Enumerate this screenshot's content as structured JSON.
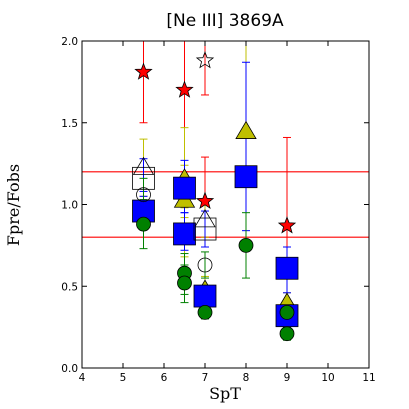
{
  "chart_data": {
    "type": "scatter",
    "title": "[Ne III] 3869A",
    "xlabel": "SpT",
    "ylabel": "Fpre/Fobs",
    "xlim": [
      4,
      11
    ],
    "ylim": [
      0.0,
      2.0
    ],
    "xticks": [
      4,
      5,
      6,
      7,
      8,
      9,
      10,
      11
    ],
    "yticks": [
      0.0,
      0.5,
      1.0,
      1.5,
      2.0
    ],
    "xtick_labels": [
      "4",
      "5",
      "6",
      "7",
      "8",
      "9",
      "10",
      "11"
    ],
    "ytick_labels": [
      "0.0",
      "0.5",
      "1.0",
      "1.5",
      "2.0"
    ],
    "grid": false,
    "reference_lines": [
      1.2,
      0.8
    ],
    "colors": {
      "reference_line": "#ff0000",
      "red_star": "#ff0000",
      "yellow_triangle": "#bfbf00",
      "blue_square": "#0000ff",
      "green_circle": "#008000"
    },
    "series": [
      {
        "marker": "star",
        "filled": true,
        "color": "#ff0000",
        "err_color": "#ff0000",
        "points": [
          {
            "x": 5.5,
            "y": 1.81,
            "lo": 1.5,
            "hi": 2.0
          },
          {
            "x": 6.5,
            "y": 1.7,
            "lo": 1.2,
            "hi": 2.0
          },
          {
            "x": 7.0,
            "y": 1.02,
            "lo": 0.8,
            "hi": 1.29
          },
          {
            "x": 9.0,
            "y": 0.87,
            "lo": 0.58,
            "hi": 1.41
          }
        ]
      },
      {
        "marker": "star",
        "filled": false,
        "color": "#000000",
        "err_color": "#ff0000",
        "points": [
          {
            "x": 7.0,
            "y": 1.88,
            "lo": 1.67,
            "hi": 2.0
          }
        ]
      },
      {
        "marker": "triangle",
        "filled": true,
        "color": "#bfbf00",
        "err_color": "#bfbf00",
        "points": [
          {
            "x": 6.5,
            "y": 1.15,
            "lo": 0.92,
            "hi": 1.47
          },
          {
            "x": 6.5,
            "y": 1.02,
            "lo": 0.85,
            "hi": 1.24
          },
          {
            "x": 6.5,
            "y": 0.8,
            "lo": 0.68,
            "hi": 0.98
          },
          {
            "x": 7.0,
            "y": 0.47,
            "lo": 0.38,
            "hi": 0.56
          },
          {
            "x": 8.0,
            "y": 1.44,
            "lo": 1.15,
            "hi": 2.0
          },
          {
            "x": 9.0,
            "y": 0.39,
            "lo": 0.34,
            "hi": 0.46
          }
        ]
      },
      {
        "marker": "triangle",
        "filled": false,
        "color": "#000000",
        "err_color": "#bfbf00",
        "points": [
          {
            "x": 5.5,
            "y": 1.22,
            "lo": 1.05,
            "hi": 1.4
          },
          {
            "x": 7.0,
            "y": 0.9,
            "lo": 0.8,
            "hi": 1.02
          }
        ]
      },
      {
        "marker": "square",
        "filled": true,
        "color": "#0000ff",
        "err_color": "#0000ff",
        "points": [
          {
            "x": 5.5,
            "y": 0.96,
            "lo": 0.85,
            "hi": 1.08
          },
          {
            "x": 6.5,
            "y": 1.1,
            "lo": 0.95,
            "hi": 1.27
          },
          {
            "x": 6.5,
            "y": 0.82,
            "lo": 0.72,
            "hi": 0.95
          },
          {
            "x": 7.0,
            "y": 0.44,
            "lo": 0.38,
            "hi": 0.5
          },
          {
            "x": 8.0,
            "y": 1.17,
            "lo": 0.84,
            "hi": 1.87
          },
          {
            "x": 9.0,
            "y": 0.61,
            "lo": 0.46,
            "hi": 0.74
          },
          {
            "x": 9.0,
            "y": 0.32,
            "lo": 0.27,
            "hi": 0.38
          }
        ]
      },
      {
        "marker": "square",
        "filled": false,
        "color": "#000000",
        "err_color": "#0000ff",
        "points": [
          {
            "x": 5.5,
            "y": 1.16,
            "lo": 1.05,
            "hi": 1.28
          },
          {
            "x": 7.0,
            "y": 0.85,
            "lo": 0.74,
            "hi": 0.96
          }
        ]
      },
      {
        "marker": "circle",
        "filled": true,
        "color": "#008000",
        "err_color": "#008000",
        "points": [
          {
            "x": 5.5,
            "y": 0.88,
            "lo": 0.73,
            "hi": 1.03
          },
          {
            "x": 6.5,
            "y": 0.58,
            "lo": 0.45,
            "hi": 0.7
          },
          {
            "x": 6.5,
            "y": 0.52,
            "lo": 0.4,
            "hi": 0.63
          },
          {
            "x": 7.0,
            "y": 0.34,
            "lo": 0.3,
            "hi": 0.39
          },
          {
            "x": 8.0,
            "y": 0.75,
            "lo": 0.55,
            "hi": 0.95
          },
          {
            "x": 9.0,
            "y": 0.34,
            "lo": 0.28,
            "hi": 0.4
          },
          {
            "x": 9.0,
            "y": 0.21,
            "lo": 0.17,
            "hi": 0.25
          }
        ]
      },
      {
        "marker": "circle",
        "filled": false,
        "color": "#000000",
        "err_color": "#008000",
        "points": [
          {
            "x": 5.5,
            "y": 1.06,
            "lo": 0.96,
            "hi": 1.16
          },
          {
            "x": 7.0,
            "y": 0.63,
            "lo": 0.55,
            "hi": 0.71
          }
        ]
      }
    ]
  }
}
